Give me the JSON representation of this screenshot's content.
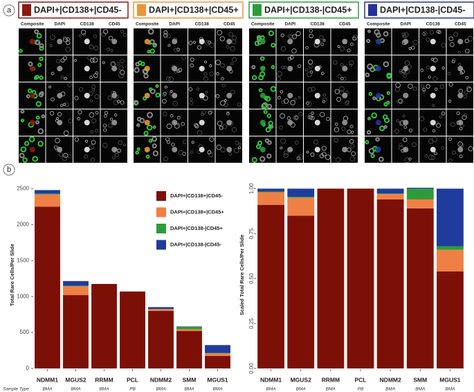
{
  "panel_labels": [
    "a",
    "b"
  ],
  "image_panels": [
    {
      "title": "DAPI+|CD138+|CD45-",
      "color": "#8b1a10",
      "columns": [
        "Composite",
        "DAPI",
        "CD138",
        "CD45"
      ]
    },
    {
      "title": "DAPI+|CD138+|CD45+",
      "color": "#e8963a",
      "columns": [
        "Composite",
        "DAPI",
        "CD138",
        "CD45"
      ]
    },
    {
      "title": "DAPI+|CD138-|CD45+",
      "color": "#2e9b3a",
      "columns": [
        "Composite",
        "DAPI",
        "CD138",
        "CD45"
      ]
    },
    {
      "title": "DAPI+|CD138-|CD45-",
      "color": "#26329a",
      "columns": [
        "Composite",
        "DAPI",
        "CD138",
        "CD45"
      ]
    }
  ],
  "sample_type_label": "Sample Type",
  "chart_data": [
    {
      "type": "stacked-bar",
      "y_label": "Total Rare Cells/Per Slide",
      "categories": [
        "NDMM1",
        "MGUS2",
        "RRMM",
        "PCL",
        "NDMM2",
        "SMM",
        "MGUS1"
      ],
      "sample_types": [
        "BMA",
        "BMA",
        "BMA",
        "PB",
        "BMA",
        "BMA",
        "BMA"
      ],
      "series": [
        {
          "name": "DAPI+|CD138+|CD45-",
          "color": "#7d1006",
          "values": [
            2250,
            1020,
            1175,
            1070,
            800,
            520,
            175
          ]
        },
        {
          "name": "DAPI+|CD138+|CD45+",
          "color": "#f07f45",
          "values": [
            170,
            125,
            0,
            0,
            25,
            25,
            35
          ]
        },
        {
          "name": "DAPI+|CD138-|CD45+",
          "color": "#2e9b3a",
          "values": [
            10,
            5,
            0,
            0,
            3,
            35,
            5
          ]
        },
        {
          "name": "DAPI+|CD138-|CD45-",
          "color": "#1f3c9c",
          "values": [
            50,
            65,
            0,
            0,
            25,
            5,
            110
          ]
        }
      ],
      "ylim": [
        0,
        2600
      ],
      "yticks": [
        0,
        500,
        1000,
        1500,
        2000,
        2500
      ],
      "legend": "top-right"
    },
    {
      "type": "stacked-bar",
      "y_label": "Scaled Total Rare Cells/Per Slide",
      "categories": [
        "NDMM1",
        "MGUS2",
        "RRMM",
        "PCL",
        "NDMM2",
        "SMM",
        "MGUS1"
      ],
      "sample_types": [
        "BMA",
        "BMA",
        "BMA",
        "PB",
        "BMA",
        "BMA",
        "BMA"
      ],
      "series": [
        {
          "name": "DAPI+|CD138+|CD45-",
          "color": "#7d1006",
          "values": [
            0.91,
            0.85,
            1.0,
            1.0,
            0.94,
            0.89,
            0.54
          ]
        },
        {
          "name": "DAPI+|CD138+|CD45+",
          "color": "#f07f45",
          "values": [
            0.07,
            0.1,
            0,
            0,
            0.03,
            0.05,
            0.12
          ]
        },
        {
          "name": "DAPI+|CD138-|CD45+",
          "color": "#2e9b3a",
          "values": [
            0.004,
            0.005,
            0,
            0,
            0.003,
            0.06,
            0.02
          ]
        },
        {
          "name": "DAPI+|CD138-|CD45-",
          "color": "#1f3c9c",
          "values": [
            0.016,
            0.045,
            0,
            0,
            0.027,
            0.005,
            0.32
          ]
        }
      ],
      "ylim": [
        0,
        1.04
      ],
      "yticks": [
        {
          "value": 0,
          "label": "0.00"
        },
        {
          "value": 0.25,
          "label": "0.25"
        },
        {
          "value": 0.5,
          "label": "0.50"
        },
        {
          "value": 0.75,
          "label": "0.75"
        },
        {
          "value": 1,
          "label": "1.00"
        }
      ]
    }
  ]
}
